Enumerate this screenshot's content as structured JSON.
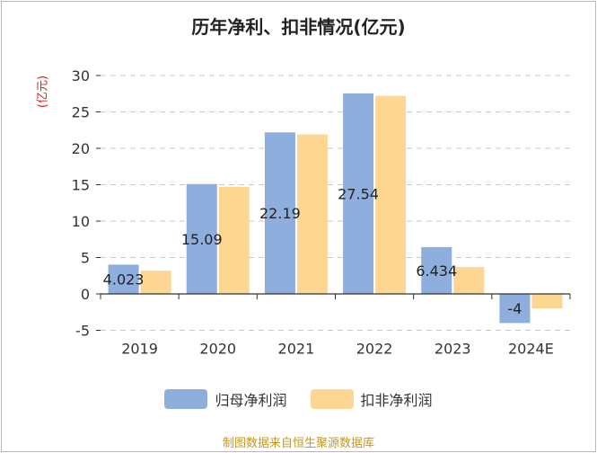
{
  "title": "历年净利、扣非情况(亿元)",
  "unit_label": "(亿元)",
  "source": "制图数据来自恒生聚源数据库",
  "colors": {
    "series1": "#8eaedd",
    "series2": "#fdd692",
    "unit": "#e0181b",
    "source": "#c8961a",
    "axis": "#333333",
    "grid": "#c8c8c8"
  },
  "chart_data": {
    "type": "bar",
    "title": "历年净利、扣非情况(亿元)",
    "ylabel": "(亿元)",
    "categories": [
      "2019",
      "2020",
      "2021",
      "2022",
      "2023",
      "2024E"
    ],
    "ylim": [
      -5,
      30
    ],
    "yticks": [
      -5,
      0,
      5,
      10,
      15,
      20,
      25,
      30
    ],
    "grid": true,
    "legend_position": "bottom",
    "series": [
      {
        "name": "归母净利润",
        "values": [
          4.023,
          15.09,
          22.19,
          27.54,
          6.434,
          -4
        ],
        "labels": [
          "4.023",
          "15.09",
          "22.19",
          "27.54",
          "6.434",
          "-4"
        ]
      },
      {
        "name": "扣非净利润",
        "values": [
          3.2,
          14.7,
          21.9,
          27.2,
          3.7,
          -2.0
        ]
      }
    ]
  }
}
